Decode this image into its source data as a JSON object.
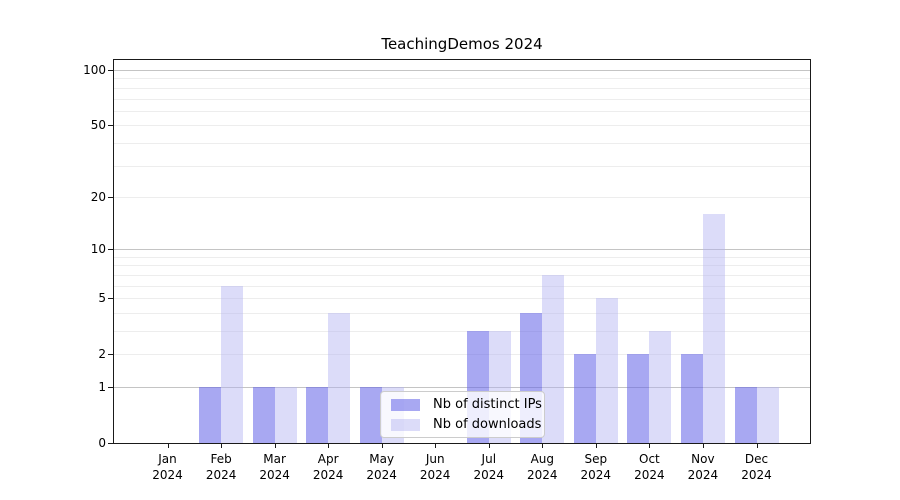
{
  "chart_data": {
    "type": "bar",
    "title": "TeachingDemos 2024",
    "categories": [
      "Jan",
      "Feb",
      "Mar",
      "Apr",
      "May",
      "Jun",
      "Jul",
      "Aug",
      "Sep",
      "Oct",
      "Nov",
      "Dec"
    ],
    "category_year": "2024",
    "series": [
      {
        "name": "Nb of distinct IPs",
        "key": "distinct-ips",
        "color": "rgba(102,102,232,0.57)",
        "values": [
          0,
          1,
          1,
          1,
          1,
          0,
          3,
          4,
          2,
          2,
          2,
          1
        ]
      },
      {
        "name": "Nb of downloads",
        "key": "downloads",
        "color": "rgba(177,177,242,0.45)",
        "values": [
          0,
          6,
          1,
          4,
          1,
          0,
          3,
          7,
          5,
          3,
          16,
          1
        ]
      }
    ],
    "yscale": "log1p",
    "yticks": [
      0,
      1,
      2,
      5,
      10,
      20,
      50,
      100
    ],
    "ylim": [
      0,
      113
    ],
    "grid": true,
    "legend_position": "lower center",
    "colors": {
      "grid_major": "#c4c4c4",
      "grid_minor": "#ededed",
      "axis_frame": "#1a1a1a"
    }
  }
}
